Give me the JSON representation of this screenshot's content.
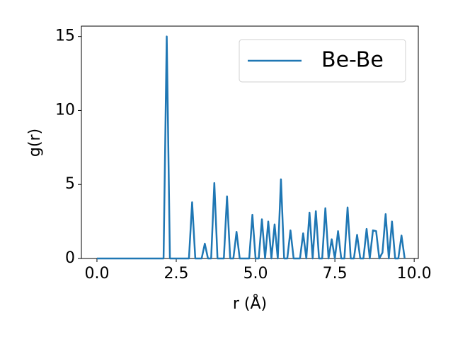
{
  "chart_data": {
    "type": "line",
    "x_label": "r (Å)",
    "y_label": "g(r)",
    "x": [
      0.0,
      0.1,
      0.2,
      0.3,
      0.4,
      0.5,
      0.6,
      0.7,
      0.8,
      0.9,
      1.0,
      1.1,
      1.2,
      1.3,
      1.4,
      1.5,
      1.6,
      1.7,
      1.8,
      1.9,
      2.0,
      2.1,
      2.2,
      2.3,
      2.4,
      2.5,
      2.6,
      2.7,
      2.8,
      2.9,
      3.0,
      3.1,
      3.2,
      3.3,
      3.4,
      3.5,
      3.6,
      3.7,
      3.8,
      3.9,
      4.0,
      4.1,
      4.2,
      4.3,
      4.4,
      4.5,
      4.6,
      4.7,
      4.8,
      4.9,
      5.0,
      5.1,
      5.2,
      5.3,
      5.4,
      5.5,
      5.6,
      5.7,
      5.8,
      5.9,
      6.0,
      6.1,
      6.2,
      6.3,
      6.4,
      6.5,
      6.6,
      6.7,
      6.8,
      6.9,
      7.0,
      7.1,
      7.2,
      7.3,
      7.4,
      7.5,
      7.6,
      7.7,
      7.8,
      7.9,
      8.0,
      8.1,
      8.2,
      8.3,
      8.4,
      8.5,
      8.6,
      8.7,
      8.8,
      8.9,
      9.0,
      9.1,
      9.2,
      9.3,
      9.4,
      9.5,
      9.6,
      9.7
    ],
    "series": [
      {
        "name": "Be-Be",
        "color": "#1f77b4",
        "values": [
          0,
          0,
          0,
          0,
          0,
          0,
          0,
          0,
          0,
          0,
          0,
          0,
          0,
          0,
          0,
          0,
          0,
          0,
          0,
          0,
          0,
          0,
          15,
          0,
          0,
          0,
          0,
          0,
          0,
          0,
          3.8,
          0,
          0,
          0,
          1.0,
          0,
          0,
          5.1,
          0,
          0,
          0,
          4.2,
          0,
          0,
          1.8,
          0,
          0,
          0,
          0,
          2.95,
          0,
          0,
          2.65,
          0,
          2.5,
          0,
          2.3,
          0,
          5.35,
          0,
          0,
          1.9,
          0,
          0,
          0,
          1.7,
          0,
          3.1,
          0,
          3.2,
          0,
          0,
          3.4,
          0,
          1.3,
          0,
          1.85,
          0,
          0,
          3.45,
          0,
          0,
          1.6,
          0,
          0,
          2.0,
          0,
          1.9,
          1.85,
          0,
          0.4,
          3.0,
          0,
          2.5,
          0,
          0,
          1.55,
          0
        ]
      }
    ],
    "xlim": [
      -0.49,
      10.13
    ],
    "ylim": [
      0,
      15.7
    ],
    "xticks": [
      {
        "value": 0,
        "label": "0.0"
      },
      2.5,
      {
        "value": 5,
        "label": "5.0"
      },
      7.5,
      {
        "value": 10,
        "label": "10.0"
      }
    ],
    "yticks": [
      0,
      5,
      10,
      15
    ],
    "legend": "upper right"
  }
}
